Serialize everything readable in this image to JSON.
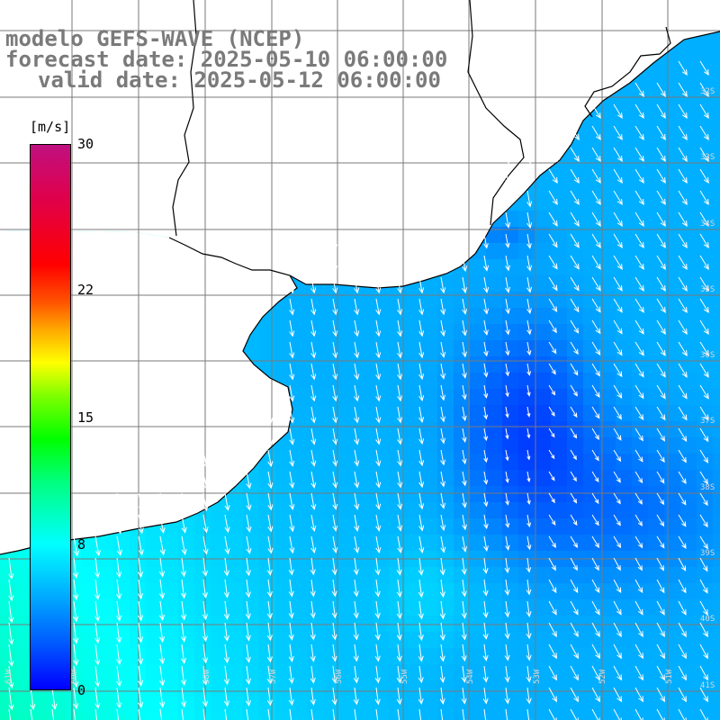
{
  "title": {
    "line1": "modelo GEFS-WAVE (NCEP)",
    "line2": "forecast date: 2025-05-10 06:00:00",
    "line3": "valid date: 2025-05-12 06:00:00"
  },
  "colorbar": {
    "unit": "[m/s]",
    "min": 0,
    "max": 30,
    "ticks": [
      {
        "label": "30",
        "value": 30
      },
      {
        "label": "22",
        "value": 22
      },
      {
        "label": "15",
        "value": 15
      },
      {
        "label": "8",
        "value": 8
      },
      {
        "label": "0",
        "value": 0
      }
    ]
  },
  "map": {
    "variable": "wind speed and direction",
    "lon_range": [
      -61,
      -50
    ],
    "lat_range": [
      -42,
      -31
    ],
    "land_color": "#ffffff",
    "coast_color": "#000000",
    "arrow_color": "#ffffff",
    "grid_color": "#7a7a7a",
    "lon_tick_labels": [
      "61W",
      "60W",
      "58W",
      "57W",
      "56W",
      "55W",
      "54W",
      "53W",
      "52W",
      "51W"
    ],
    "lat_tick_labels": [
      "32S",
      "33S",
      "34S",
      "35S",
      "36S",
      "37S",
      "38S",
      "39S",
      "40S",
      "41S"
    ]
  }
}
